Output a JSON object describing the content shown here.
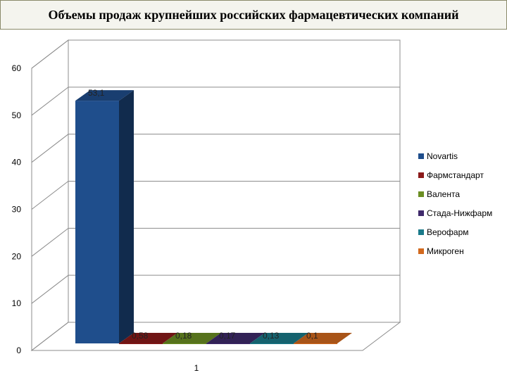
{
  "page": {
    "title": "Объемы продаж крупнейших российских фармацевтических компаний"
  },
  "chart_data": {
    "type": "bar",
    "categories": [
      "1"
    ],
    "series": [
      {
        "name": "Novartis",
        "values": [
          53.1
        ],
        "label": "53,1",
        "color": "#1f4e8c"
      },
      {
        "name": "Фармстандарт",
        "values": [
          0.58
        ],
        "label": "0,58",
        "color": "#8b1a1a"
      },
      {
        "name": "Валента",
        "values": [
          0.18
        ],
        "label": "0,18",
        "color": "#6b8e23"
      },
      {
        "name": "Стада-Нижфарм",
        "values": [
          0.17
        ],
        "label": "0,17",
        "color": "#3f2a6b"
      },
      {
        "name": "Верофарм",
        "values": [
          0.13
        ],
        "label": "0,13",
        "color": "#1a7a8a"
      },
      {
        "name": "Микроген",
        "values": [
          0.1
        ],
        "label": "0,1",
        "color": "#d2691e"
      }
    ],
    "yticks": [
      "0",
      "10",
      "20",
      "30",
      "40",
      "50",
      "60"
    ],
    "ylim": [
      0,
      60
    ],
    "grid": true,
    "legend": "right"
  }
}
